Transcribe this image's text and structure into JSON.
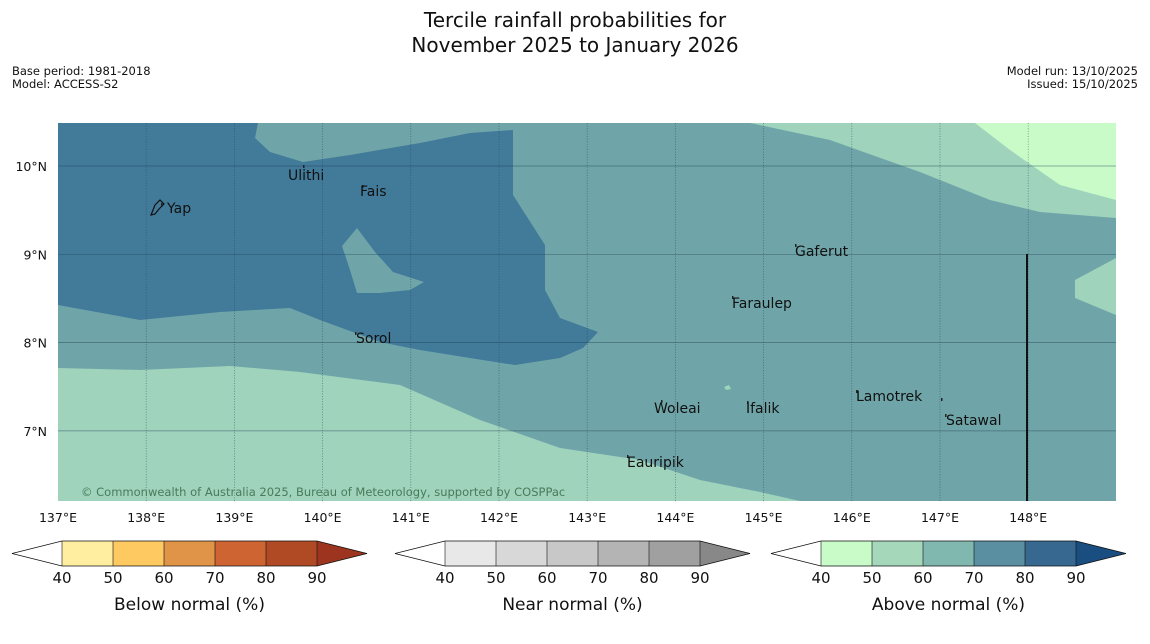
{
  "title": {
    "line1": "Tercile rainfall probabilities for",
    "line2": "November 2025 to January 2026"
  },
  "meta_left": {
    "base_period": "Base period: 1981-2018",
    "model": "Model: ACCESS-S2"
  },
  "meta_right": {
    "model_run": "Model run: 13/10/2025",
    "issued": "Issued: 15/10/2025"
  },
  "map": {
    "lat_labels": [
      "10°N",
      "9°N",
      "8°N",
      "7°N"
    ],
    "lon_labels": [
      "137°E",
      "138°E",
      "139°E",
      "140°E",
      "141°E",
      "142°E",
      "143°E",
      "144°E",
      "145°E",
      "146°E",
      "147°E",
      "148°E"
    ],
    "places": [
      "Yap",
      "Ulithi",
      "Fais",
      "Sorol",
      "Gaferut",
      "Faraulep",
      "Woleai",
      "Ifalik",
      "Eauripik",
      "Lamotrek",
      "Satawal"
    ],
    "copyright": "© Commonwealth of Australia 2025, Bureau of Meteorology, supported by COSPPac",
    "category_colors": {
      "above_40_50": "#c8fbc8",
      "above_50_60": "#9fd3bc",
      "above_60_70": "#6fa5a8",
      "above_70_80": "#427a9a"
    }
  },
  "colorbars": [
    {
      "title": "Below normal (%)",
      "ticks": [
        "40",
        "50",
        "60",
        "70",
        "80",
        "90"
      ],
      "colors": [
        "#ffffff",
        "#ffeda0",
        "#fdc960",
        "#e09448",
        "#cf6433",
        "#b04a25",
        "#9c3420"
      ]
    },
    {
      "title": "Near normal (%)",
      "ticks": [
        "40",
        "50",
        "60",
        "70",
        "80",
        "90"
      ],
      "colors": [
        "#ffffff",
        "#e8e8e8",
        "#d8d8d8",
        "#c8c8c8",
        "#b4b4b4",
        "#a0a0a0",
        "#888888"
      ]
    },
    {
      "title": "Above normal (%)",
      "ticks": [
        "40",
        "50",
        "60",
        "70",
        "80",
        "90"
      ],
      "colors": [
        "#ffffff",
        "#c8fbc8",
        "#a5d8bb",
        "#80b8b0",
        "#5a8fa2",
        "#366890",
        "#1a4d80"
      ]
    }
  ]
}
